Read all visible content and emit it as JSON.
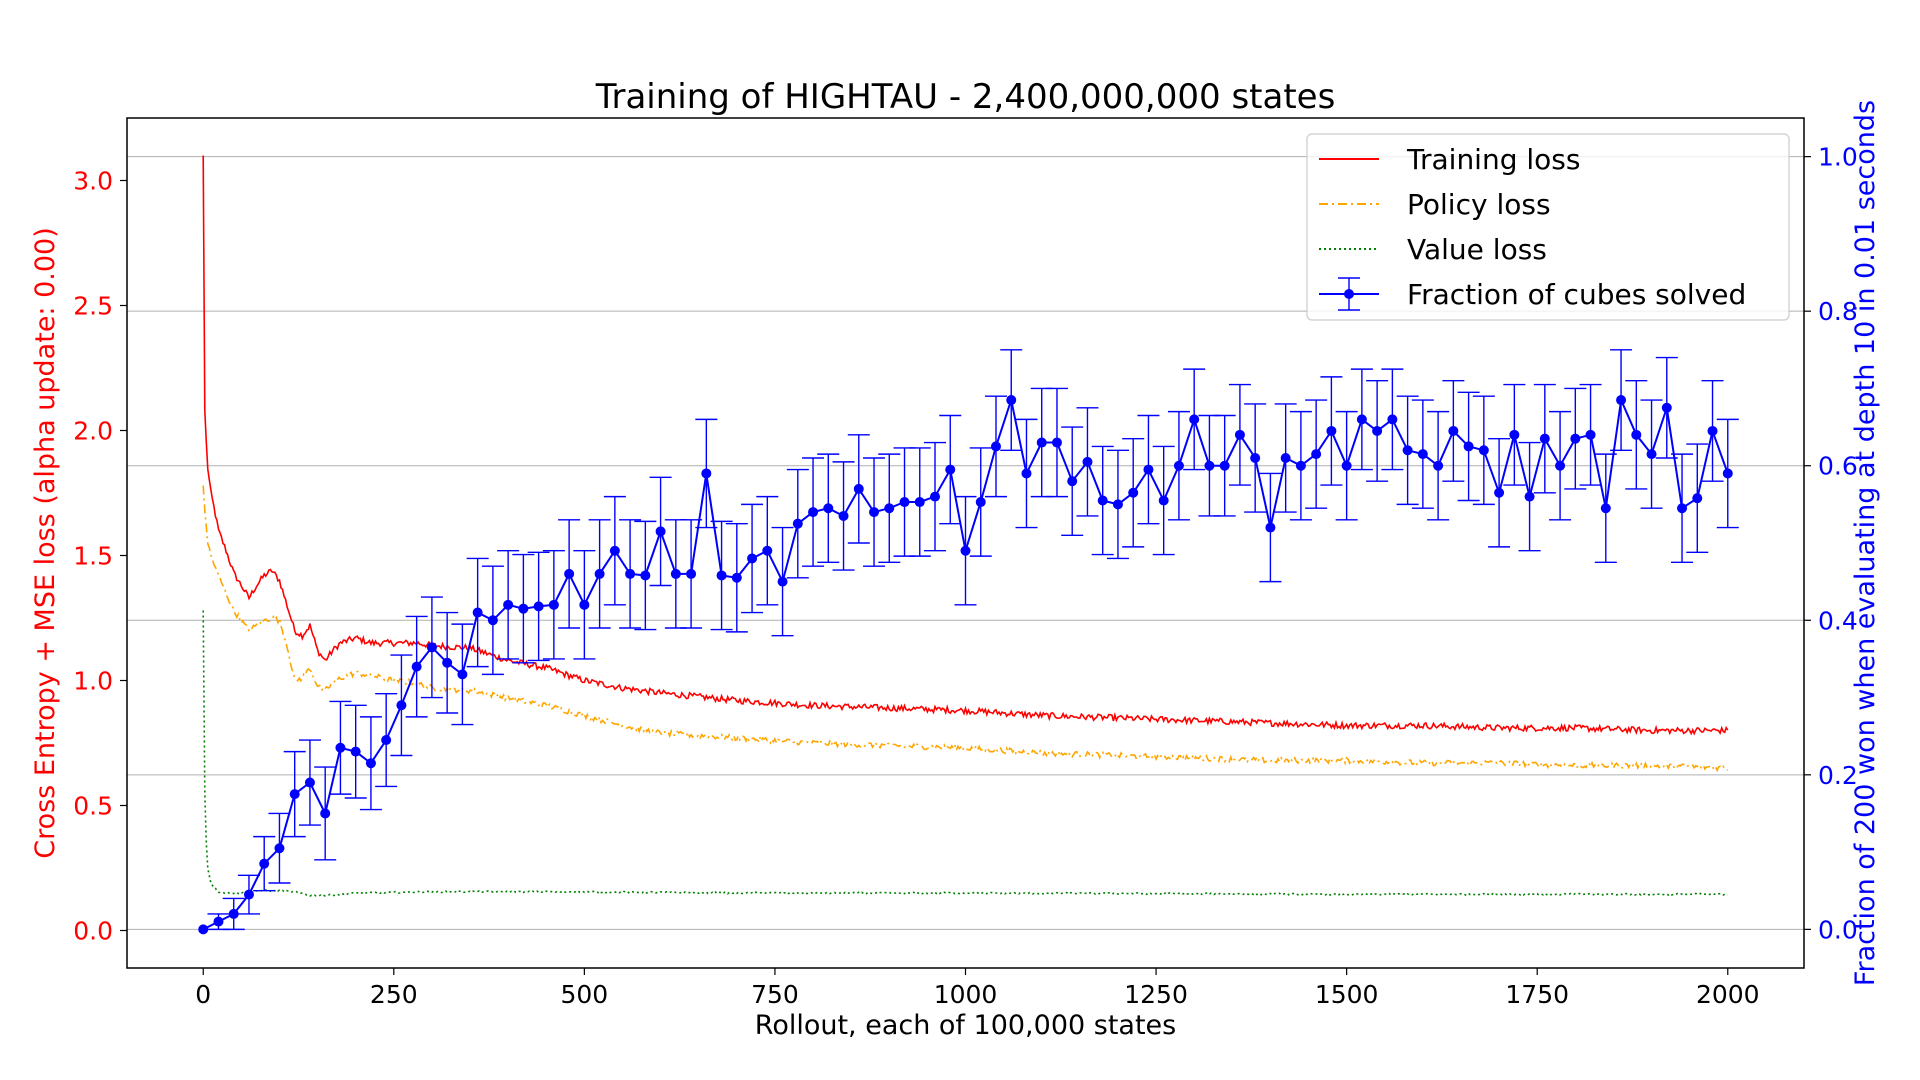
{
  "chart_data": {
    "type": "line",
    "title": "Training of HIGHTAU - 2,400,000,000 states",
    "xlabel": "Rollout, each of 100,000 states",
    "ylabel_left": "Cross Entropy + MSE loss (alpha update: 0.00)",
    "ylabel_right": "Fraction of 200 won when evaluating at depth 10 in 0.01 seconds",
    "xlim": [
      -100,
      2100
    ],
    "ylim_left": [
      -0.15,
      3.25
    ],
    "ylim_right": [
      -0.05,
      1.05
    ],
    "x_ticks": [
      0,
      250,
      500,
      750,
      1000,
      1250,
      1500,
      1750,
      2000
    ],
    "x_tick_labels": [
      "0",
      "250",
      "500",
      "750",
      "1000",
      "1250",
      "1500",
      "1750",
      "2000"
    ],
    "y_left_ticks": [
      0.0,
      0.5,
      1.0,
      1.5,
      2.0,
      2.5,
      3.0
    ],
    "y_left_tick_labels": [
      "0.0",
      "0.5",
      "1.0",
      "1.5",
      "2.0",
      "2.5",
      "3.0"
    ],
    "y_right_ticks": [
      0.0,
      0.2,
      0.4,
      0.6,
      0.8,
      1.0
    ],
    "y_right_tick_labels": [
      "0.0",
      "0.2",
      "0.4",
      "0.6",
      "0.8",
      "1.0"
    ],
    "grid": "horizontal, right axis",
    "legend_position": "top-right",
    "colors": {
      "training": "#ff0000",
      "policy": "#ffa500",
      "value": "#008000",
      "solved": "#0000ff",
      "left_axis": "#ff0000",
      "right_axis": "#0000ff"
    },
    "series": [
      {
        "name": "Training loss",
        "axis": "left",
        "style": "solid",
        "x": [
          0,
          1,
          2,
          4,
          6,
          10,
          15,
          20,
          30,
          40,
          50,
          60,
          70,
          80,
          90,
          100,
          110,
          120,
          130,
          140,
          150,
          160,
          170,
          180,
          200,
          220,
          250,
          280,
          300,
          350,
          400,
          450,
          500,
          550,
          600,
          700,
          800,
          900,
          1000,
          1100,
          1200,
          1300,
          1400,
          1500,
          1600,
          1700,
          1800,
          1900,
          2000
        ],
        "y": [
          3.1,
          2.4,
          2.08,
          1.95,
          1.85,
          1.75,
          1.68,
          1.6,
          1.52,
          1.43,
          1.38,
          1.33,
          1.38,
          1.42,
          1.44,
          1.4,
          1.3,
          1.2,
          1.18,
          1.22,
          1.12,
          1.08,
          1.12,
          1.15,
          1.17,
          1.15,
          1.15,
          1.15,
          1.14,
          1.13,
          1.08,
          1.05,
          1.0,
          0.97,
          0.95,
          0.92,
          0.9,
          0.89,
          0.88,
          0.86,
          0.85,
          0.84,
          0.83,
          0.82,
          0.82,
          0.81,
          0.81,
          0.8,
          0.8
        ]
      },
      {
        "name": "Policy loss",
        "axis": "left",
        "style": "dashdot",
        "x": [
          0,
          1,
          2,
          4,
          6,
          10,
          15,
          20,
          30,
          40,
          50,
          60,
          70,
          80,
          90,
          100,
          110,
          120,
          130,
          140,
          150,
          160,
          170,
          180,
          200,
          220,
          250,
          280,
          300,
          350,
          400,
          450,
          500,
          550,
          600,
          700,
          800,
          900,
          1000,
          1100,
          1200,
          1300,
          1400,
          1500,
          1600,
          1700,
          1800,
          1900,
          2000
        ],
        "y": [
          1.78,
          1.72,
          1.68,
          1.62,
          1.55,
          1.5,
          1.46,
          1.42,
          1.35,
          1.28,
          1.24,
          1.2,
          1.22,
          1.24,
          1.25,
          1.24,
          1.14,
          1.0,
          1.01,
          1.05,
          0.98,
          0.96,
          0.99,
          1.01,
          1.03,
          1.02,
          1.0,
          0.99,
          0.97,
          0.96,
          0.93,
          0.9,
          0.86,
          0.82,
          0.79,
          0.77,
          0.75,
          0.74,
          0.73,
          0.71,
          0.7,
          0.69,
          0.68,
          0.68,
          0.67,
          0.67,
          0.66,
          0.66,
          0.65
        ]
      },
      {
        "name": "Value loss",
        "axis": "left",
        "style": "dotted",
        "x": [
          0,
          1,
          2,
          4,
          6,
          10,
          15,
          20,
          30,
          50,
          80,
          100,
          120,
          140,
          160,
          200,
          300,
          500,
          700,
          1000,
          1500,
          2000
        ],
        "y": [
          1.28,
          0.8,
          0.55,
          0.35,
          0.25,
          0.19,
          0.17,
          0.155,
          0.15,
          0.15,
          0.16,
          0.16,
          0.155,
          0.14,
          0.14,
          0.15,
          0.155,
          0.155,
          0.15,
          0.15,
          0.145,
          0.145
        ]
      },
      {
        "name": "Fraction of cubes solved",
        "axis": "right",
        "style": "errorbar",
        "x": [
          0,
          20,
          40,
          60,
          80,
          100,
          120,
          140,
          160,
          180,
          200,
          220,
          240,
          260,
          280,
          300,
          320,
          340,
          360,
          380,
          400,
          420,
          440,
          460,
          480,
          500,
          520,
          540,
          560,
          580,
          600,
          620,
          640,
          660,
          680,
          700,
          720,
          740,
          760,
          780,
          800,
          820,
          840,
          860,
          880,
          900,
          920,
          940,
          960,
          980,
          1000,
          1020,
          1040,
          1060,
          1080,
          1100,
          1120,
          1140,
          1160,
          1180,
          1200,
          1220,
          1240,
          1260,
          1280,
          1300,
          1320,
          1340,
          1360,
          1380,
          1400,
          1420,
          1440,
          1460,
          1480,
          1500,
          1520,
          1540,
          1560,
          1580,
          1600,
          1620,
          1640,
          1660,
          1680,
          1700,
          1720,
          1740,
          1760,
          1780,
          1800,
          1820,
          1840,
          1860,
          1880,
          1900,
          1920,
          1940,
          1960,
          1980,
          2000
        ],
        "y": [
          0.0,
          0.01,
          0.02,
          0.045,
          0.085,
          0.105,
          0.175,
          0.19,
          0.15,
          0.235,
          0.23,
          0.215,
          0.245,
          0.29,
          0.34,
          0.365,
          0.345,
          0.33,
          0.41,
          0.4,
          0.42,
          0.415,
          0.418,
          0.42,
          0.46,
          0.42,
          0.46,
          0.49,
          0.46,
          0.458,
          0.515,
          0.46,
          0.46,
          0.59,
          0.458,
          0.455,
          0.48,
          0.49,
          0.45,
          0.525,
          0.54,
          0.545,
          0.535,
          0.57,
          0.54,
          0.545,
          0.553,
          0.553,
          0.56,
          0.595,
          0.49,
          0.553,
          0.625,
          0.685,
          0.59,
          0.63,
          0.63,
          0.58,
          0.605,
          0.555,
          0.55,
          0.565,
          0.595,
          0.555,
          0.6,
          0.66,
          0.6,
          0.6,
          0.64,
          0.61,
          0.52,
          0.61,
          0.6,
          0.615,
          0.645,
          0.6,
          0.66,
          0.645,
          0.66,
          0.62,
          0.615,
          0.6,
          0.645,
          0.625,
          0.62,
          0.565,
          0.64,
          0.56,
          0.635,
          0.6,
          0.635,
          0.64,
          0.545,
          0.685,
          0.64,
          0.615,
          0.675,
          0.545,
          0.558,
          0.645,
          0.59
        ],
        "err": [
          0.0,
          0.01,
          0.02,
          0.025,
          0.035,
          0.045,
          0.055,
          0.055,
          0.06,
          0.06,
          0.06,
          0.06,
          0.06,
          0.065,
          0.065,
          0.065,
          0.065,
          0.065,
          0.07,
          0.07,
          0.07,
          0.07,
          0.07,
          0.07,
          0.07,
          0.07,
          0.07,
          0.07,
          0.07,
          0.07,
          0.07,
          0.07,
          0.07,
          0.07,
          0.07,
          0.07,
          0.07,
          0.07,
          0.07,
          0.07,
          0.07,
          0.07,
          0.07,
          0.07,
          0.07,
          0.07,
          0.07,
          0.07,
          0.07,
          0.07,
          0.07,
          0.07,
          0.065,
          0.065,
          0.07,
          0.07,
          0.07,
          0.07,
          0.07,
          0.07,
          0.07,
          0.07,
          0.07,
          0.07,
          0.07,
          0.065,
          0.065,
          0.065,
          0.065,
          0.07,
          0.07,
          0.07,
          0.07,
          0.07,
          0.07,
          0.07,
          0.065,
          0.065,
          0.065,
          0.07,
          0.07,
          0.07,
          0.065,
          0.07,
          0.07,
          0.07,
          0.065,
          0.07,
          0.07,
          0.07,
          0.065,
          0.065,
          0.07,
          0.065,
          0.07,
          0.07,
          0.065,
          0.07,
          0.07,
          0.065,
          0.07
        ]
      }
    ]
  }
}
